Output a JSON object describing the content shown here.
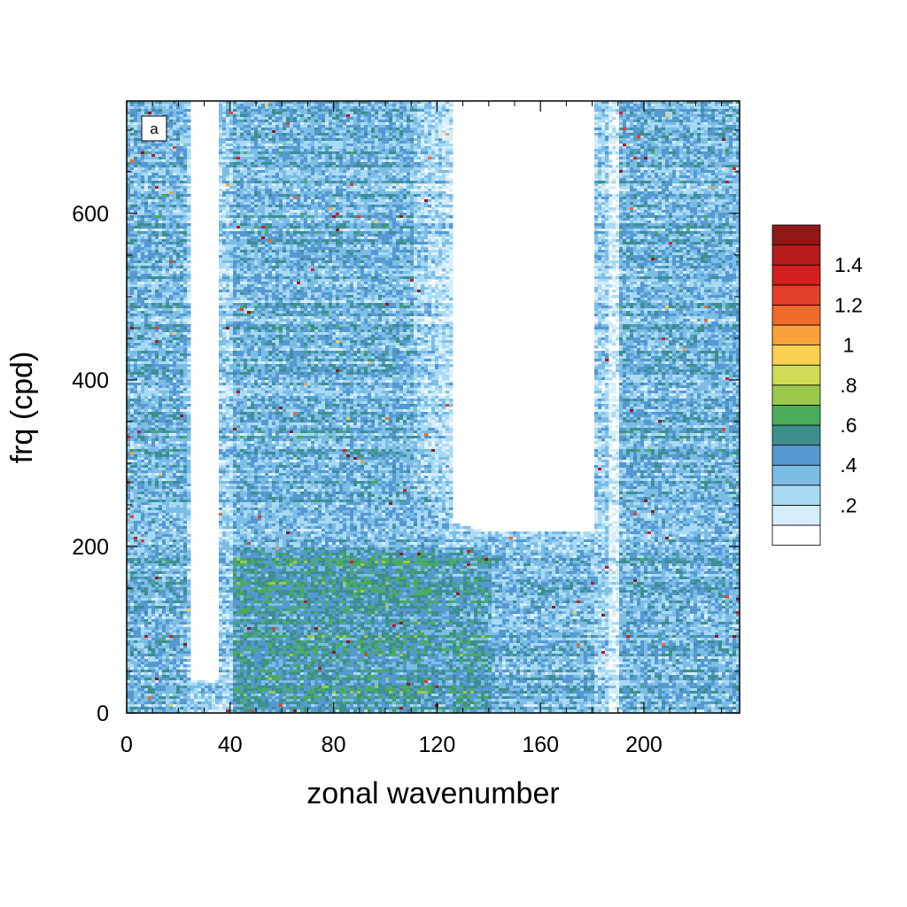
{
  "chart_data": {
    "type": "heatmap",
    "panel_label": "a",
    "xlabel": "zonal wavenumber",
    "ylabel": "frq (cpd)",
    "xlim": [
      0,
      237
    ],
    "ylim": [
      0,
      735
    ],
    "x_ticks": [
      0,
      40,
      80,
      120,
      160,
      200
    ],
    "x_tick_labels": [
      "0",
      "40",
      "80",
      "120",
      "160",
      "200"
    ],
    "y_ticks": [
      0,
      200,
      400,
      600
    ],
    "y_tick_labels": [
      "0",
      "200",
      "400",
      "600"
    ],
    "colorbar": {
      "levels": [
        0,
        0.1,
        0.2,
        0.3,
        0.4,
        0.5,
        0.6,
        0.7,
        0.8,
        0.9,
        1.0,
        1.1,
        1.2,
        1.3,
        1.4,
        1.5
      ],
      "colors": [
        "#ffffff",
        "#d6eefa",
        "#a8daf4",
        "#7cbde6",
        "#5598d2",
        "#3d8f8d",
        "#4aac5b",
        "#9cc94a",
        "#cfdc55",
        "#fbd050",
        "#f8a23c",
        "#f06a2a",
        "#e2402a",
        "#d42020",
        "#b81b1e",
        "#921818"
      ],
      "tick_labels": [
        ".2",
        ".4",
        ".6",
        ".8",
        "1",
        "1.2",
        "1.4"
      ],
      "tick_values": [
        0.2,
        0.4,
        0.6,
        0.8,
        1.0,
        1.2,
        1.4
      ]
    },
    "features": {
      "low_energy_gaps": [
        {
          "x_range": [
            24,
            35
          ],
          "y_range": [
            40,
            735
          ]
        },
        {
          "x_range": [
            125,
            180
          ],
          "y_range": [
            220,
            735
          ]
        },
        {
          "x_range": [
            186,
            190
          ],
          "y_range": [
            0,
            735
          ]
        }
      ],
      "high_energy_bands": [
        {
          "x_range": [
            40,
            110
          ],
          "y_range": [
            0,
            735
          ]
        },
        {
          "x_range": [
            190,
            237
          ],
          "y_range": [
            0,
            735
          ]
        },
        {
          "x_range": [
            0,
            22
          ],
          "y_range": [
            0,
            735
          ]
        }
      ]
    }
  }
}
